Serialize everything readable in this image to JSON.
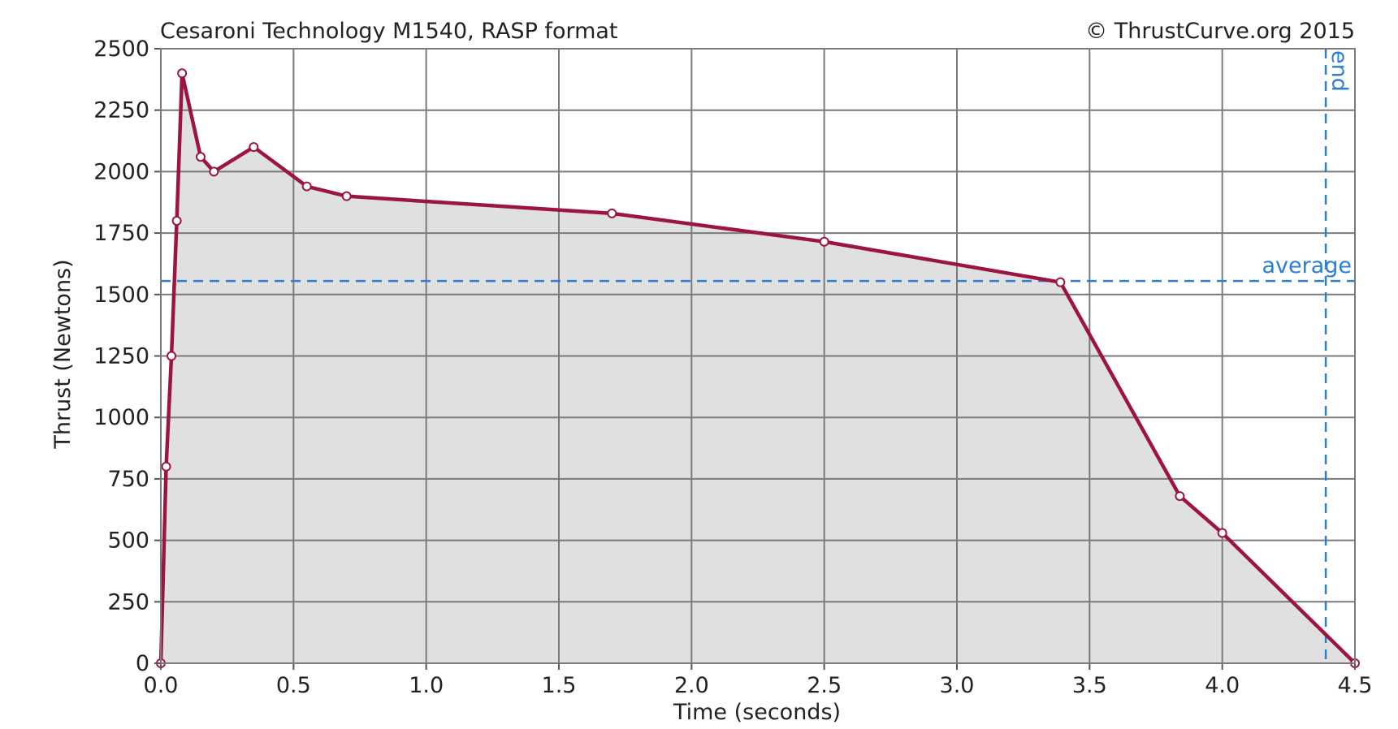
{
  "chart_data": {
    "type": "area",
    "title": "Cesaroni Technology M1540, RASP format",
    "copyright": "© ThrustCurve.org 2015",
    "xlabel": "Time (seconds)",
    "ylabel": "Thrust (Newtons)",
    "xlim": [
      0.0,
      4.5
    ],
    "ylim": [
      0,
      2500
    ],
    "x_ticks": [
      "0.0",
      "0.5",
      "1.0",
      "1.5",
      "2.0",
      "2.5",
      "3.0",
      "3.5",
      "4.0",
      "4.5"
    ],
    "y_ticks": [
      "0",
      "250",
      "500",
      "750",
      "1000",
      "1250",
      "1500",
      "1750",
      "2000",
      "2250",
      "2500"
    ],
    "grid": true,
    "series": [
      {
        "x": [
          0.0,
          0.02,
          0.04,
          0.06,
          0.08,
          0.15,
          0.2,
          0.35,
          0.55,
          0.7,
          1.7,
          2.5,
          3.39,
          3.84,
          4.0,
          4.5
        ],
        "y": [
          0,
          800,
          1250,
          1800,
          2400,
          2060,
          2000,
          2100,
          1940,
          1900,
          1830,
          1715,
          1550,
          680,
          530,
          0
        ]
      }
    ],
    "reference_lines": {
      "average": {
        "label": "average",
        "value": 1555
      },
      "end": {
        "label": "end",
        "value": 4.39
      }
    },
    "colors": {
      "line": "#9b1540",
      "fill": "#e0e0e0",
      "reference": "#2a7fd4",
      "grid": "#7a7a7a"
    }
  }
}
